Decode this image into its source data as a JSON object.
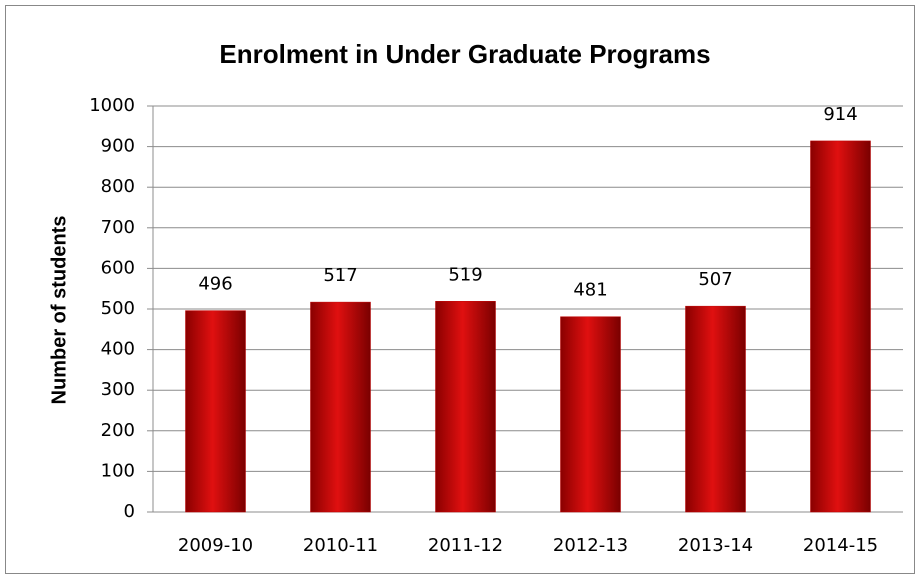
{
  "chart_data": {
    "type": "bar",
    "title": "Enrolment in Under Graduate Programs",
    "y_label": "Number of students",
    "categories": [
      "2009-10",
      "2010-11",
      "2011-12",
      "2012-13",
      "2013-14",
      "2014-15"
    ],
    "values": [
      496,
      517,
      519,
      481,
      507,
      914
    ],
    "color": "#c00000",
    "ylim": [
      0,
      1000
    ],
    "yticks": [
      0,
      100,
      200,
      300,
      400,
      500,
      600,
      700,
      800,
      900,
      1000
    ],
    "grid": true
  }
}
